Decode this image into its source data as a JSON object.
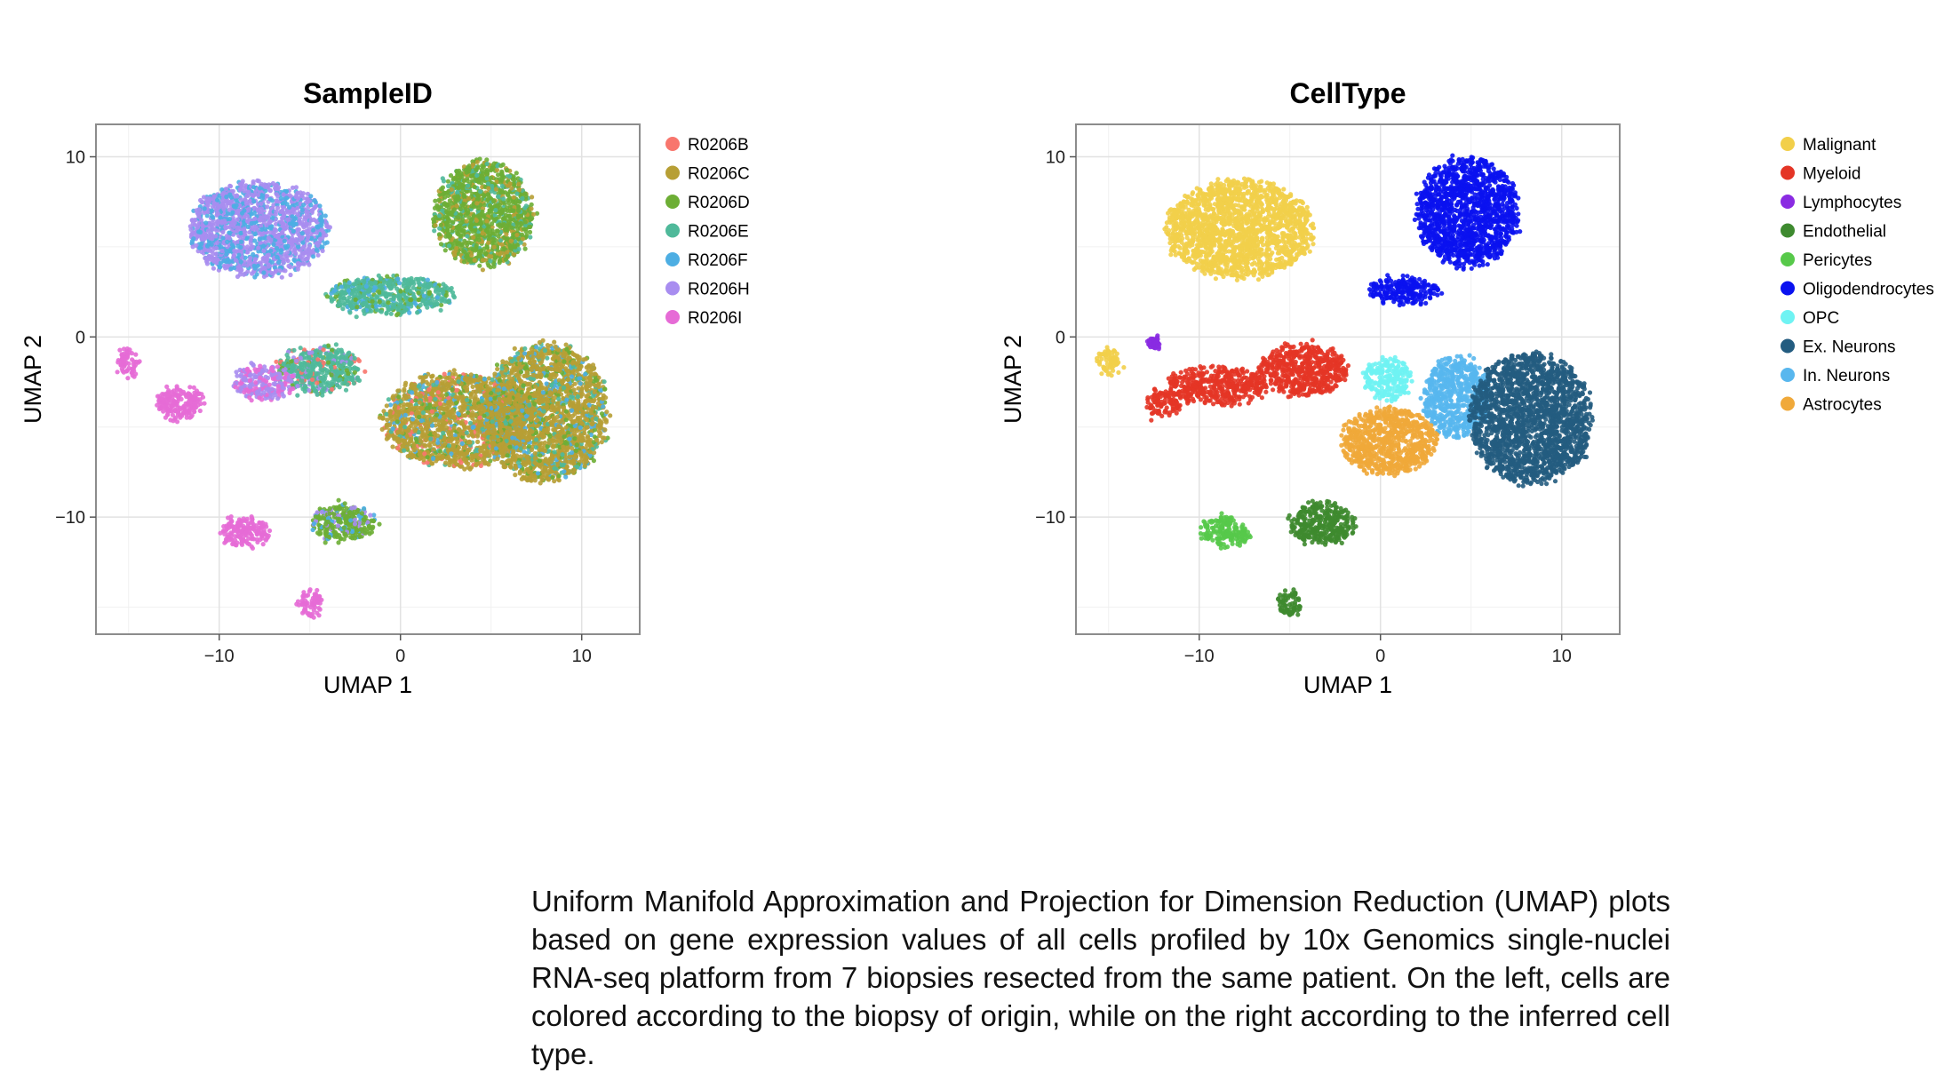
{
  "chart_data": [
    {
      "type": "scatter",
      "title": "SampleID",
      "xlabel": "UMAP 1",
      "ylabel": "UMAP 2",
      "xlim": [
        -16.8,
        13.2
      ],
      "ylim": [
        -16.5,
        11.8
      ],
      "xticks": [
        -10,
        0,
        10
      ],
      "yticks": [
        -10,
        0,
        10
      ],
      "xtick_labels": [
        "−10",
        "0",
        "10"
      ],
      "ytick_labels": [
        "−10",
        "0",
        "10"
      ],
      "grid": true,
      "legend_position": "right",
      "series": [
        {
          "name": "R0206B",
          "color": "#F8766D"
        },
        {
          "name": "R0206C",
          "color": "#B79F35"
        },
        {
          "name": "R0206D",
          "color": "#6DAE35"
        },
        {
          "name": "R0206E",
          "color": "#4FB99A"
        },
        {
          "name": "R0206F",
          "color": "#4DAEE3"
        },
        {
          "name": "R0206H",
          "color": "#A88DF0"
        },
        {
          "name": "R0206I",
          "color": "#E66BD6"
        }
      ],
      "clusters": [
        {
          "series": "R0206H",
          "x": -7.8,
          "y": 6.0,
          "rx": 3.8,
          "ry": 2.6,
          "mix": [
            "R0206F"
          ]
        },
        {
          "series": "R0206D",
          "x": 4.6,
          "y": 6.8,
          "rx": 2.7,
          "ry": 2.9,
          "mix": [
            "R0206E",
            "R0206C"
          ]
        },
        {
          "series": "R0206E",
          "x": -0.5,
          "y": 2.3,
          "rx": 3.5,
          "ry": 1.0,
          "mix": [
            "R0206D",
            "R0206F"
          ]
        },
        {
          "series": "R0206E",
          "x": -4.4,
          "y": -1.8,
          "rx": 2.3,
          "ry": 1.3,
          "mix": [
            "R0206D",
            "R0206H",
            "R0206B"
          ]
        },
        {
          "series": "R0206H",
          "x": -7.6,
          "y": -2.5,
          "rx": 1.7,
          "ry": 0.9,
          "mix": [
            "R0206I"
          ]
        },
        {
          "series": "R0206I",
          "x": -12.2,
          "y": -3.6,
          "rx": 1.3,
          "ry": 0.9,
          "mix": []
        },
        {
          "series": "R0206I",
          "x": -15.0,
          "y": -1.4,
          "rx": 0.6,
          "ry": 0.7,
          "mix": []
        },
        {
          "series": "R0206C",
          "x": 3.2,
          "y": -4.6,
          "rx": 4.2,
          "ry": 2.6,
          "mix": [
            "R0206D",
            "R0206E",
            "R0206F",
            "R0206B"
          ]
        },
        {
          "series": "R0206C",
          "x": 8.0,
          "y": -4.2,
          "rx": 3.4,
          "ry": 3.8,
          "mix": [
            "R0206E",
            "R0206D",
            "R0206F"
          ]
        },
        {
          "series": "R0206I",
          "x": -8.6,
          "y": -10.8,
          "rx": 1.3,
          "ry": 0.8,
          "mix": []
        },
        {
          "series": "R0206D",
          "x": -3.2,
          "y": -10.3,
          "rx": 1.8,
          "ry": 1.0,
          "mix": [
            "R0206H",
            "R0206F"
          ]
        },
        {
          "series": "R0206I",
          "x": -5.0,
          "y": -14.8,
          "rx": 0.6,
          "ry": 0.7,
          "mix": []
        }
      ]
    },
    {
      "type": "scatter",
      "title": "CellType",
      "xlabel": "UMAP 1",
      "ylabel": "UMAP 2",
      "xlim": [
        -16.8,
        13.2
      ],
      "ylim": [
        -16.5,
        11.8
      ],
      "xticks": [
        -10,
        0,
        10
      ],
      "yticks": [
        -10,
        0,
        10
      ],
      "xtick_labels": [
        "−10",
        "0",
        "10"
      ],
      "ytick_labels": [
        "−10",
        "0",
        "10"
      ],
      "grid": true,
      "legend_position": "right",
      "series": [
        {
          "name": "Malignant",
          "color": "#F2CF4A"
        },
        {
          "name": "Myeloid",
          "color": "#E43526"
        },
        {
          "name": "Lymphocytes",
          "color": "#8A2BE2"
        },
        {
          "name": "Endothelial",
          "color": "#3E8A2F"
        },
        {
          "name": "Pericytes",
          "color": "#57C94A"
        },
        {
          "name": "Oligodendrocytes",
          "color": "#0A12F0"
        },
        {
          "name": "OPC",
          "color": "#6FF3F3"
        },
        {
          "name": "Ex. Neurons",
          "color": "#235C80"
        },
        {
          "name": "In. Neurons",
          "color": "#58B7EE"
        },
        {
          "name": "Astrocytes",
          "color": "#F0A93A"
        }
      ],
      "clusters": [
        {
          "series": "Malignant",
          "x": -7.8,
          "y": 6.0,
          "rx": 4.0,
          "ry": 2.7
        },
        {
          "series": "Oligodendrocytes",
          "x": 4.8,
          "y": 6.9,
          "rx": 2.8,
          "ry": 3.0
        },
        {
          "series": "Oligodendrocytes",
          "x": 1.3,
          "y": 2.6,
          "rx": 2.0,
          "ry": 0.7
        },
        {
          "series": "Myeloid",
          "x": -4.3,
          "y": -1.8,
          "rx": 2.4,
          "ry": 1.4
        },
        {
          "series": "Myeloid",
          "x": -9.0,
          "y": -2.7,
          "rx": 2.7,
          "ry": 1.0
        },
        {
          "series": "Myeloid",
          "x": -12.0,
          "y": -3.7,
          "rx": 0.9,
          "ry": 0.7
        },
        {
          "series": "Malignant",
          "x": -15.0,
          "y": -1.4,
          "rx": 0.6,
          "ry": 0.7
        },
        {
          "series": "Lymphocytes",
          "x": -12.5,
          "y": -0.3,
          "rx": 0.2,
          "ry": 0.2
        },
        {
          "series": "OPC",
          "x": 0.4,
          "y": -2.3,
          "rx": 1.3,
          "ry": 1.1
        },
        {
          "series": "In. Neurons",
          "x": 4.2,
          "y": -3.4,
          "rx": 1.8,
          "ry": 2.2
        },
        {
          "series": "Astrocytes",
          "x": 0.5,
          "y": -5.8,
          "rx": 2.6,
          "ry": 1.8
        },
        {
          "series": "Ex. Neurons",
          "x": 8.3,
          "y": -4.5,
          "rx": 3.3,
          "ry": 3.6
        },
        {
          "series": "Pericytes",
          "x": -8.6,
          "y": -10.8,
          "rx": 1.3,
          "ry": 0.8
        },
        {
          "series": "Endothelial",
          "x": -3.2,
          "y": -10.4,
          "rx": 1.8,
          "ry": 1.1
        },
        {
          "series": "Endothelial",
          "x": -5.0,
          "y": -14.8,
          "rx": 0.6,
          "ry": 0.7
        }
      ]
    }
  ],
  "caption": "Uniform Manifold Approximation and Projection for Dimension Reduction (UMAP) plots based on gene expression values of all cells profiled by 10x Genomics single-nuclei RNA-seq platform from 7 biopsies resected from the same patient. On the left, cells are colored according to the biopsy of origin, while on the right according to the inferred cell type."
}
